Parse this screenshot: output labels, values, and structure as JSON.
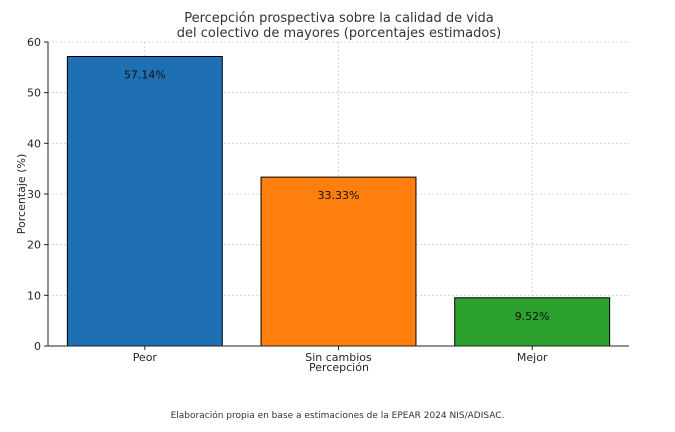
{
  "chart_data": {
    "type": "bar",
    "title_lines": [
      "Percepción prospectiva sobre la calidad de vida",
      "del colectivo de mayores (porcentajes estimados)"
    ],
    "categories": [
      "Peor",
      "Sin cambios",
      "Mejor"
    ],
    "values": [
      57.14,
      33.33,
      9.52
    ],
    "data_labels": [
      "57.14%",
      "33.33%",
      "9.52%"
    ],
    "colors": [
      "#1f6fb4",
      "#ff7f0e",
      "#2ca02c"
    ],
    "xlabel": "Percepción",
    "ylabel": "Porcentaje (%)",
    "ylim": [
      0,
      60
    ],
    "yticks": [
      0,
      10,
      20,
      30,
      40,
      50,
      60
    ],
    "grid": true
  },
  "caption": "Elaboración propia en base a estimaciones de la EPEAR 2024 NIS/ADISAC."
}
